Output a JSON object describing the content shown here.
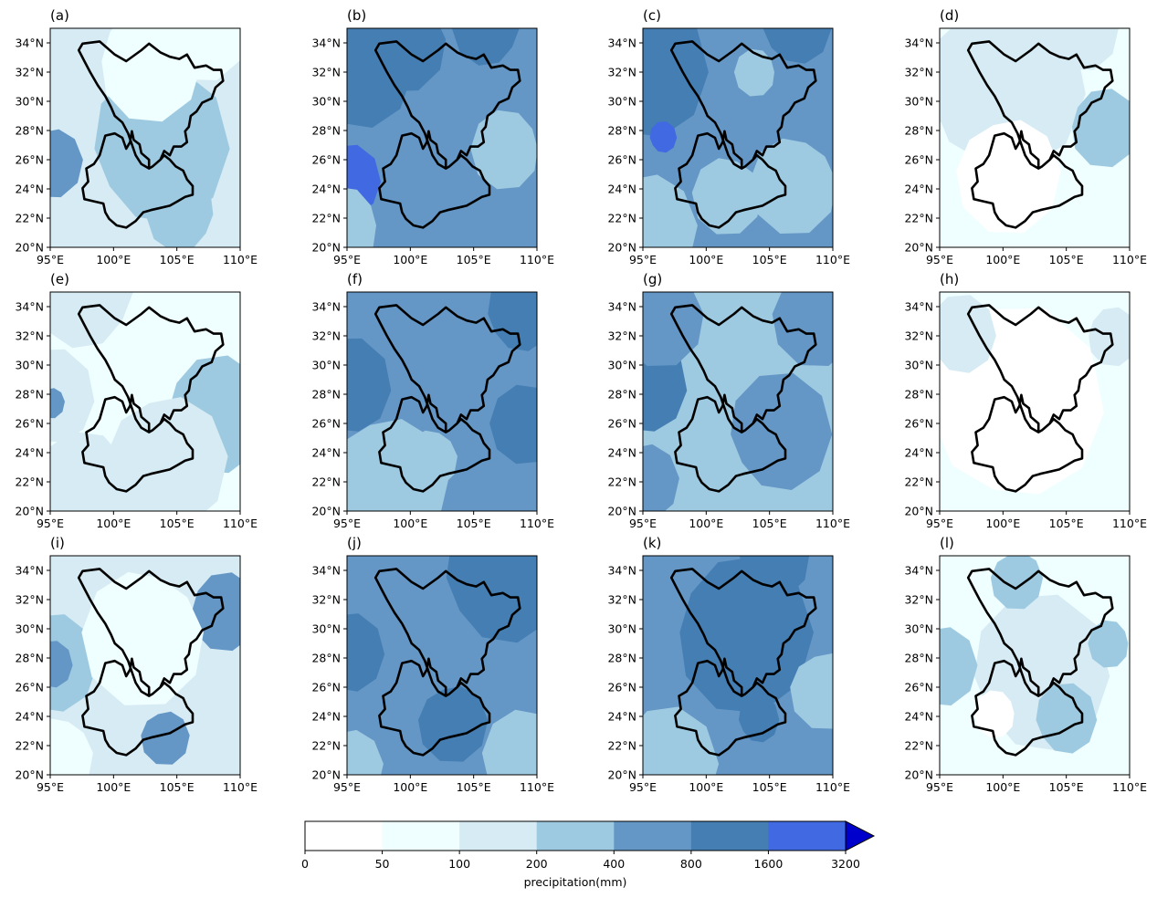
{
  "colors": {
    "levels": [
      "#ffffff",
      "#effefe",
      "#d6ebf3",
      "#9ecae1",
      "#6497c6",
      "#447eb3",
      "#4169e1",
      "#0000cd"
    ]
  },
  "axes": {
    "x_ticks": [
      "95°E",
      "100°E",
      "105°E",
      "110°E"
    ],
    "y_ticks": [
      "20°N",
      "22°N",
      "24°N",
      "26°N",
      "28°N",
      "30°N",
      "32°N",
      "34°N"
    ]
  },
  "panels": [
    {
      "label": "(a)",
      "base": 2,
      "patches": [
        [
          0.0,
          0.45,
          0.4,
          2,
          1
        ],
        [
          0.55,
          0.55,
          0.4,
          3,
          1
        ],
        [
          0.0,
          0.6,
          0.18,
          4,
          2
        ],
        [
          0.5,
          0.15,
          0.3,
          1,
          0
        ],
        [
          0.8,
          0.0,
          0.25,
          1,
          0
        ],
        [
          0.75,
          0.55,
          0.14,
          3,
          4
        ],
        [
          0.7,
          0.85,
          0.2,
          3,
          1
        ]
      ]
    },
    {
      "label": "(b)",
      "base": 4,
      "patches": [
        [
          0.0,
          0.7,
          0.18,
          6,
          2
        ],
        [
          0.05,
          0.2,
          0.3,
          5,
          1
        ],
        [
          0.3,
          0.05,
          0.25,
          5,
          3
        ],
        [
          0.75,
          0.0,
          0.2,
          5,
          4
        ],
        [
          0.0,
          0.9,
          0.2,
          3,
          2
        ],
        [
          0.85,
          0.55,
          0.2,
          3,
          1
        ]
      ]
    },
    {
      "label": "(c)",
      "base": 4,
      "patches": [
        [
          0.0,
          0.2,
          0.35,
          5,
          2
        ],
        [
          0.1,
          0.5,
          0.08,
          6,
          1
        ],
        [
          0.0,
          0.9,
          0.3,
          3,
          2
        ],
        [
          0.8,
          0.7,
          0.25,
          3,
          2
        ],
        [
          0.45,
          0.75,
          0.2,
          3,
          1
        ],
        [
          0.6,
          0.2,
          0.12,
          3,
          1
        ],
        [
          0.8,
          0.0,
          0.2,
          5,
          3
        ]
      ]
    },
    {
      "label": "(d)",
      "base": 1,
      "patches": [
        [
          0.35,
          0.3,
          0.45,
          2,
          1
        ],
        [
          0.0,
          0.25,
          0.2,
          2,
          2
        ],
        [
          0.85,
          0.45,
          0.2,
          3,
          1
        ],
        [
          0.35,
          0.65,
          0.3,
          0,
          1
        ],
        [
          0.75,
          0.0,
          0.2,
          2,
          0
        ]
      ]
    },
    {
      "label": "(e)",
      "base": 1,
      "patches": [
        [
          0.0,
          0.5,
          0.25,
          2,
          1
        ],
        [
          0.0,
          0.5,
          0.08,
          4,
          3
        ],
        [
          0.85,
          0.55,
          0.3,
          3,
          1
        ],
        [
          0.6,
          0.75,
          0.35,
          2,
          1
        ],
        [
          0.2,
          0.9,
          0.3,
          2,
          2
        ],
        [
          0.2,
          0.0,
          0.3,
          2,
          2
        ]
      ]
    },
    {
      "label": "(f)",
      "base": 4,
      "patches": [
        [
          0.0,
          0.45,
          0.25,
          5,
          1
        ],
        [
          0.9,
          0.1,
          0.2,
          5,
          1
        ],
        [
          0.2,
          0.85,
          0.35,
          3,
          2
        ],
        [
          0.45,
          0.75,
          0.15,
          3,
          2
        ],
        [
          0.95,
          0.6,
          0.2,
          5,
          2
        ]
      ]
    },
    {
      "label": "(g)",
      "base": 3,
      "patches": [
        [
          0.0,
          0.45,
          0.25,
          5,
          1
        ],
        [
          0.7,
          0.65,
          0.3,
          4,
          1
        ],
        [
          0.0,
          0.85,
          0.2,
          4,
          2
        ],
        [
          0.9,
          0.1,
          0.25,
          4,
          1
        ],
        [
          0.1,
          0.1,
          0.25,
          4,
          1
        ]
      ]
    },
    {
      "label": "(h)",
      "base": 1,
      "patches": [
        [
          0.4,
          0.55,
          0.5,
          0,
          1
        ],
        [
          0.1,
          0.2,
          0.2,
          2,
          1
        ],
        [
          0.9,
          0.2,
          0.15,
          2,
          1
        ]
      ]
    },
    {
      "label": "(i)",
      "base": 2,
      "patches": [
        [
          0.0,
          0.5,
          0.25,
          3,
          2
        ],
        [
          0.0,
          0.5,
          0.12,
          4,
          1
        ],
        [
          0.9,
          0.25,
          0.2,
          4,
          1
        ],
        [
          0.6,
          0.82,
          0.14,
          4,
          1
        ],
        [
          0.5,
          0.35,
          0.35,
          1,
          1
        ],
        [
          0.05,
          0.9,
          0.2,
          1,
          0
        ]
      ]
    },
    {
      "label": "(j)",
      "base": 4,
      "patches": [
        [
          0.8,
          0.1,
          0.35,
          5,
          2
        ],
        [
          0.0,
          0.45,
          0.2,
          5,
          1
        ],
        [
          0.55,
          0.75,
          0.2,
          5,
          2
        ],
        [
          0.0,
          0.95,
          0.2,
          3,
          1
        ],
        [
          0.95,
          0.9,
          0.25,
          3,
          1
        ]
      ]
    },
    {
      "label": "(k)",
      "base": 4,
      "patches": [
        [
          0.5,
          0.35,
          0.4,
          5,
          3
        ],
        [
          0.6,
          0.75,
          0.12,
          5,
          1
        ],
        [
          0.1,
          0.95,
          0.3,
          3,
          1
        ],
        [
          0.95,
          0.6,
          0.2,
          3,
          1
        ],
        [
          0.7,
          0.0,
          0.2,
          5,
          1
        ]
      ]
    },
    {
      "label": "(l)",
      "base": 1,
      "patches": [
        [
          0.5,
          0.55,
          0.4,
          2,
          2
        ],
        [
          0.65,
          0.75,
          0.18,
          3,
          1
        ],
        [
          0.0,
          0.5,
          0.2,
          3,
          1
        ],
        [
          0.4,
          0.1,
          0.15,
          3,
          1
        ],
        [
          0.9,
          0.4,
          0.12,
          3,
          2
        ],
        [
          0.3,
          0.72,
          0.12,
          0,
          1
        ]
      ]
    }
  ],
  "colorbar": {
    "ticks": [
      "0",
      "50",
      "100",
      "200",
      "400",
      "800",
      "1600",
      "3200"
    ],
    "label": "precipitation(mm)"
  }
}
